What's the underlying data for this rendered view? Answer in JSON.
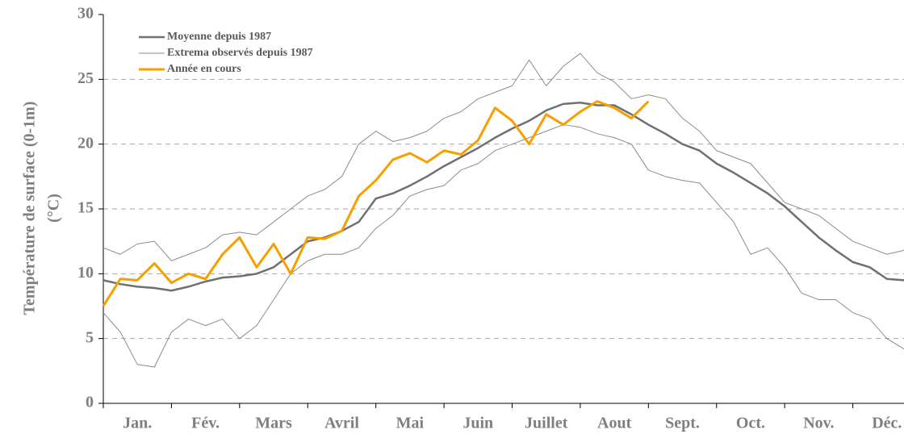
{
  "chart_data": {
    "type": "line",
    "y_label": [
      "Température de surface (0-1m)",
      "(°C)"
    ],
    "x": [
      0,
      0.25,
      0.5,
      0.75,
      1,
      1.25,
      1.5,
      1.75,
      2,
      2.25,
      2.5,
      2.75,
      3,
      3.25,
      3.5,
      3.75,
      4,
      4.25,
      4.5,
      4.75,
      5,
      5.25,
      5.5,
      5.75,
      6,
      6.25,
      6.5,
      6.75,
      7,
      7.25,
      7.5,
      7.75,
      8,
      8.25,
      8.5,
      8.75,
      9,
      9.25,
      9.5,
      9.75,
      10,
      10.25,
      10.5,
      10.75,
      11,
      11.25,
      11.5,
      11.75,
      12
    ],
    "xlim": [
      0,
      12
    ],
    "xticks": [
      {
        "value": 0.5,
        "label": "Jan."
      },
      {
        "value": 1.5,
        "label": "Fév."
      },
      {
        "value": 2.5,
        "label": "Mars"
      },
      {
        "value": 3.5,
        "label": "Avril"
      },
      {
        "value": 4.5,
        "label": "Mai"
      },
      {
        "value": 5.5,
        "label": "Juin"
      },
      {
        "value": 6.5,
        "label": "Juillet"
      },
      {
        "value": 7.5,
        "label": "Aout"
      },
      {
        "value": 8.5,
        "label": "Sept."
      },
      {
        "value": 9.5,
        "label": "Oct."
      },
      {
        "value": 10.5,
        "label": "Nov."
      },
      {
        "value": 11.5,
        "label": "Déc."
      }
    ],
    "ylim": [
      0,
      30
    ],
    "yticks": [
      0,
      5,
      10,
      15,
      20,
      25,
      30
    ],
    "grid": true,
    "legend": "top-left",
    "series": [
      {
        "name": "Moyenne depuis 1987",
        "color": "#707070",
        "values": [
          9.5,
          9.2,
          9.0,
          8.9,
          8.7,
          9.0,
          9.4,
          9.7,
          9.8,
          10.0,
          10.5,
          11.5,
          12.5,
          12.8,
          13.3,
          14.0,
          15.8,
          16.2,
          16.8,
          17.5,
          18.3,
          19.0,
          19.7,
          20.5,
          21.2,
          21.8,
          22.6,
          23.1,
          23.2,
          23.0,
          23.0,
          22.3,
          21.5,
          20.8,
          20.0,
          19.5,
          18.5,
          17.8,
          17.0,
          16.2,
          15.2,
          14.0,
          12.8,
          11.8,
          10.9,
          10.5,
          9.6,
          9.5,
          9.3
        ]
      },
      {
        "name": "Extrema observés depuis 1987",
        "color": "#8c8c8c",
        "upper": [
          12.0,
          11.5,
          12.3,
          12.5,
          11.0,
          11.5,
          12.0,
          13.0,
          13.2,
          13.0,
          14.0,
          15.0,
          16.0,
          16.5,
          17.5,
          20.0,
          21.0,
          20.2,
          20.5,
          21.0,
          22.0,
          22.5,
          23.5,
          24.0,
          24.5,
          26.5,
          24.5,
          26.0,
          27.0,
          25.5,
          24.8,
          23.5,
          23.8,
          23.5,
          22.0,
          21.0,
          19.5,
          19.0,
          18.5,
          17.0,
          15.5,
          15.0,
          14.5,
          13.5,
          12.5,
          12.0,
          11.5,
          11.8,
          11.8
        ],
        "lower": [
          7.0,
          5.5,
          3.0,
          2.8,
          5.5,
          6.5,
          6.0,
          6.5,
          5.0,
          6.0,
          8.0,
          10.0,
          11.0,
          11.5,
          11.5,
          12.0,
          13.5,
          14.5,
          16.0,
          16.5,
          16.8,
          18.0,
          18.5,
          19.5,
          20.0,
          20.5,
          21.0,
          21.5,
          21.3,
          20.8,
          20.5,
          20.0,
          18.0,
          17.5,
          17.2,
          17.0,
          15.5,
          14.0,
          11.5,
          12.0,
          10.5,
          8.5,
          8.0,
          8.0,
          7.0,
          6.5,
          5.0,
          4.2,
          4.0
        ]
      },
      {
        "name": "Année en cours",
        "color": "#f5a000",
        "values": [
          7.5,
          9.6,
          9.5,
          10.8,
          9.3,
          10.0,
          9.6,
          11.5,
          12.8,
          10.5,
          12.3,
          10.0,
          12.8,
          12.7,
          13.3,
          16.0,
          17.2,
          18.8,
          19.3,
          18.6,
          19.5,
          19.2,
          20.3,
          22.8,
          21.8,
          20.0,
          22.3,
          21.5,
          22.5,
          23.3,
          22.8,
          22.0,
          23.3,
          null,
          null,
          null,
          null,
          null,
          null,
          null,
          null,
          null,
          null,
          null,
          null,
          null,
          null,
          null,
          null
        ]
      }
    ]
  }
}
